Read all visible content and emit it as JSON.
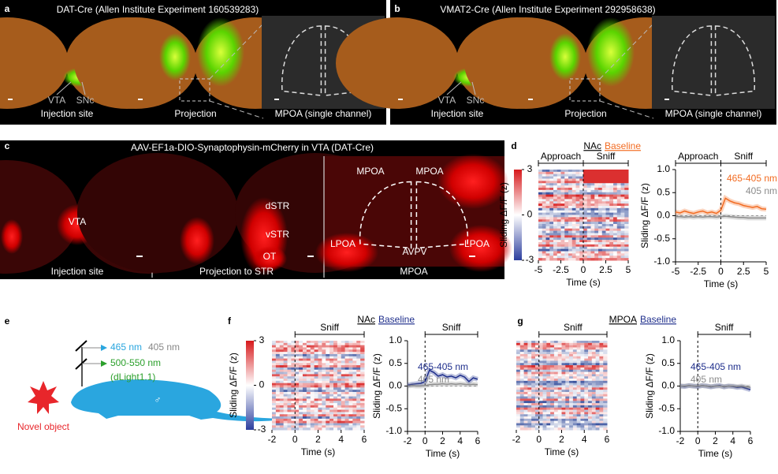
{
  "panels": {
    "a": {
      "label": "a",
      "title": "DAT-Cre (Allen Institute Experiment 160539283)",
      "captions": [
        "Injection site",
        "Projection",
        "MPOA (single channel)"
      ],
      "regions": [
        "VTA",
        "SNc"
      ]
    },
    "b": {
      "label": "b",
      "title": "VMAT2-Cre (Allen Institute Experiment 292958638)",
      "captions": [
        "Injection site",
        "Projection",
        "MPOA (single channel)"
      ],
      "regions": [
        "VTA",
        "SNc"
      ]
    },
    "c": {
      "label": "c",
      "title": "AAV-EF1a-DIO-Synaptophysin-mCherry in VTA (DAT-Cre)",
      "captions": [
        "Injection site",
        "Projection to STR",
        "MPOA"
      ],
      "regions": [
        "VTA",
        "dSTR",
        "vSTR",
        "OT",
        "MPOA",
        "MPOA",
        "LPOA",
        "LPOA",
        "AVPV"
      ]
    },
    "d": {
      "label": "d",
      "title": [
        "NAc",
        "Baseline"
      ],
      "heatmap": {
        "colorbar_ticks": [
          3,
          0,
          -3
        ],
        "ylabel": "Sliding ΔF/F (z)",
        "xticks": [
          -5,
          -2.5,
          0,
          2.5,
          5
        ],
        "xlabel": "Time (s)",
        "epochs": [
          "Approach",
          "Sniff"
        ]
      }
    },
    "e": {
      "label": "e",
      "excitation": [
        "465 nm",
        "405 nm"
      ],
      "emission": [
        "500-550 nm",
        "(dLight1.1)"
      ],
      "object": "Novel object",
      "sex": "♂"
    },
    "f": {
      "label": "f",
      "title": [
        "NAc",
        "Baseline"
      ],
      "heatmap": {
        "colorbar_ticks": [
          3,
          0,
          -3
        ],
        "ylabel": "Sliding ΔF/F (z)",
        "xticks": [
          -2,
          0,
          2,
          4,
          6
        ],
        "xlabel": "Time (s)",
        "epochs": [
          "Sniff"
        ]
      }
    },
    "g": {
      "label": "g",
      "title": [
        "MPOA",
        "Baseline"
      ],
      "heatmap": {
        "xticks": [
          -2,
          0,
          2,
          4,
          6
        ],
        "xlabel": "Time (s)",
        "epochs": [
          "Sniff"
        ]
      }
    }
  },
  "chart_data": [
    {
      "type": "line",
      "xlabel": "Time (s)",
      "ylabel": "Sliding ΔF/F (z)",
      "epochs": [
        "Approach",
        "Sniff"
      ],
      "x": [
        -5,
        -4.5,
        -4,
        -3.5,
        -3,
        -2.5,
        -2,
        -1.5,
        -1,
        -0.5,
        0,
        0.5,
        1,
        1.5,
        2,
        2.5,
        3,
        3.5,
        4,
        4.5,
        5
      ],
      "series": [
        {
          "name": "465-405 nm",
          "color": "#f26b21",
          "values": [
            0.08,
            0.06,
            0.1,
            0.07,
            0.05,
            0.08,
            0.1,
            0.06,
            0.08,
            0.05,
            0.12,
            0.38,
            0.32,
            0.28,
            0.26,
            0.22,
            0.2,
            0.18,
            0.2,
            0.15,
            0.14
          ]
        },
        {
          "name": "405 nm",
          "color": "#8c8c8c",
          "values": [
            -0.02,
            -0.02,
            -0.03,
            -0.02,
            -0.03,
            -0.02,
            -0.03,
            -0.02,
            -0.02,
            -0.03,
            -0.02,
            -0.01,
            -0.02,
            -0.03,
            -0.04,
            -0.04,
            -0.05,
            -0.05,
            -0.05,
            -0.05,
            -0.05
          ]
        }
      ],
      "xlim": [
        -5,
        5
      ],
      "xticks": [
        -5,
        -2.5,
        0,
        2.5,
        5
      ],
      "ylim": [
        -1,
        1
      ],
      "yticks": [
        {
          "value": -1,
          "label": "-1.0"
        },
        -0.5,
        {
          "value": 0,
          "label": "0.0"
        },
        0.5,
        {
          "value": 1,
          "label": "1.0"
        }
      ]
    },
    {
      "type": "line",
      "xlabel": "Time (s)",
      "ylabel": "Sliding ΔF/F (z)",
      "epochs": [
        "Sniff"
      ],
      "x": [
        -2,
        -1.5,
        -1,
        -0.5,
        0,
        0.5,
        1,
        1.5,
        2,
        2.5,
        3,
        3.5,
        4,
        4.5,
        5,
        5.5,
        6
      ],
      "series": [
        {
          "name": "465-405 nm",
          "color": "#1f2f8c",
          "values": [
            0.02,
            0.04,
            0.05,
            0.06,
            0.1,
            0.35,
            0.3,
            0.22,
            0.25,
            0.2,
            0.22,
            0.18,
            0.24,
            0.2,
            0.1,
            0.18,
            0.15
          ]
        },
        {
          "name": "405 nm",
          "color": "#8c8c8c",
          "values": [
            0,
            0.01,
            0,
            0,
            0.01,
            0.03,
            0.04,
            0.04,
            0.05,
            0.04,
            0.05,
            0.04,
            0.05,
            0.04,
            0.03,
            0.04,
            0.03
          ]
        }
      ],
      "xlim": [
        -2,
        6
      ],
      "xticks": [
        -2,
        0,
        2,
        4,
        6
      ],
      "ylim": [
        -1,
        1
      ],
      "yticks": [
        {
          "value": -1,
          "label": "-1.0"
        },
        -0.5,
        {
          "value": 0,
          "label": "0.0"
        },
        0.5,
        {
          "value": 1,
          "label": "1.0"
        }
      ]
    },
    {
      "type": "line",
      "xlabel": "Time (s)",
      "ylabel": "Sliding ΔF/F (z)",
      "epochs": [
        "Sniff"
      ],
      "x": [
        -2,
        -1.5,
        -1,
        -0.5,
        0,
        0.5,
        1,
        1.5,
        2,
        2.5,
        3,
        3.5,
        4,
        4.5,
        5,
        5.5,
        6
      ],
      "series": [
        {
          "name": "465-405 nm",
          "color": "#1f2f8c",
          "values": [
            0,
            -0.01,
            0.01,
            0,
            -0.01,
            0.01,
            0,
            -0.02,
            0,
            0.01,
            -0.02,
            0,
            -0.01,
            -0.03,
            -0.02,
            -0.05,
            -0.08
          ]
        },
        {
          "name": "405 nm",
          "color": "#8c8c8c",
          "values": [
            0,
            0,
            0.01,
            0,
            0,
            0.01,
            0,
            -0.01,
            0,
            0,
            -0.01,
            0,
            0,
            -0.01,
            0,
            -0.02,
            -0.02
          ]
        }
      ],
      "xlim": [
        -2,
        6
      ],
      "xticks": [
        -2,
        0,
        2,
        4,
        6
      ],
      "ylim": [
        -1,
        1
      ],
      "yticks": [
        {
          "value": -1,
          "label": "-1.0"
        },
        -0.5,
        {
          "value": 0,
          "label": "0.0"
        },
        0.5,
        {
          "value": 1,
          "label": "1.0"
        }
      ]
    }
  ]
}
